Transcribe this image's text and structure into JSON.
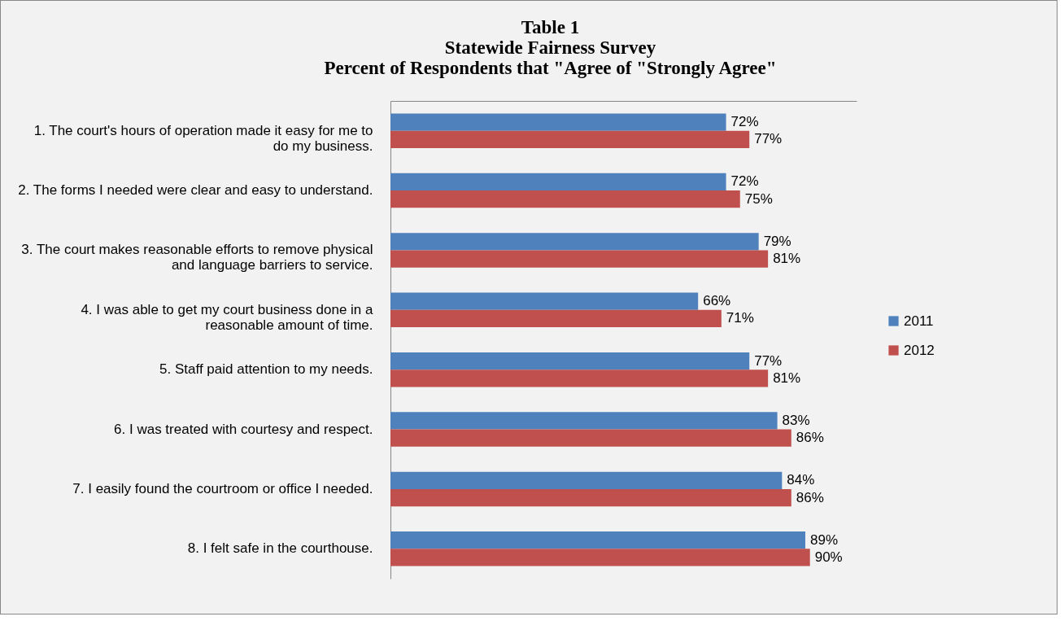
{
  "chart_data": {
    "type": "bar",
    "orientation": "horizontal",
    "title": "Table 1",
    "subtitle": "Statewide Fairness Survey\nPercent of Respondents that \"Agree of \"Strongly Agree\"",
    "categories": [
      "1. The court's hours of operation made it easy for me to do my business.",
      "2. The forms I needed were clear and easy to understand.",
      "3. The court makes reasonable efforts to remove physical and language barriers to service.",
      "4. I was able to get my court business done in a reasonable amount of time.",
      "5. Staff paid attention to my needs.",
      "6. I was treated with courtesy and respect.",
      "7. I easily found the courtroom or office I needed.",
      "8. I felt safe in the courthouse."
    ],
    "series": [
      {
        "name": "2011",
        "color": "#4f81bd",
        "values": [
          72,
          72,
          79,
          66,
          77,
          83,
          84,
          89
        ],
        "value_labels": [
          "72%",
          "72%",
          "79%",
          "66%",
          "77%",
          "83%",
          "84%",
          "89%"
        ]
      },
      {
        "name": "2012",
        "color": "#c0504d",
        "values": [
          77,
          75,
          81,
          71,
          81,
          86,
          86,
          90
        ],
        "value_labels": [
          "77%",
          "75%",
          "81%",
          "71%",
          "81%",
          "86%",
          "86%",
          "90%"
        ]
      }
    ],
    "xlim": [
      0,
      100
    ],
    "tick_labels": "y",
    "legend": "right"
  }
}
